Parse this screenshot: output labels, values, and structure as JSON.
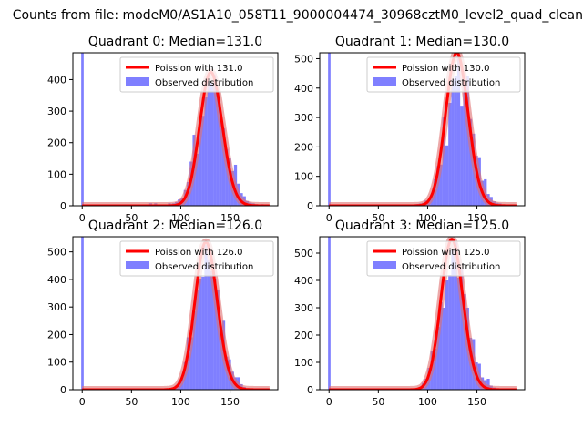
{
  "figure": {
    "suptitle": "Counts from file: modeM0/AS1A10_058T11_9000004474_30968cztM0_level2_quad_clean"
  },
  "colors": {
    "histogram": "#0000ff",
    "poisson_line": "#ff0000",
    "poisson_shadow": "#e07070",
    "axis": "#000000",
    "legend_border": "#cccccc"
  },
  "chart_data": [
    {
      "type": "histogram",
      "title": "Quadrant 0: Median=131.0",
      "median": 131,
      "xlim": [
        -9.45,
        198.45
      ],
      "ylim": [
        0,
        485
      ],
      "xticks": [
        0,
        50,
        100,
        150
      ],
      "yticks": [
        0,
        100,
        200,
        300,
        400
      ],
      "legend": [
        "Poission with 131.0",
        "Observed distribution"
      ],
      "legend_loc": "upper right",
      "spike": {
        "x": 0,
        "value": 485
      },
      "bins": [
        {
          "x": 68,
          "value": 8
        },
        {
          "x": 73,
          "value": 8
        },
        {
          "x": 87,
          "value": 8
        },
        {
          "x": 91,
          "value": 8
        },
        {
          "x": 94,
          "value": 12
        },
        {
          "x": 97,
          "value": 20
        },
        {
          "x": 100,
          "value": 25
        },
        {
          "x": 103,
          "value": 50
        },
        {
          "x": 106,
          "value": 75
        },
        {
          "x": 109,
          "value": 140
        },
        {
          "x": 112,
          "value": 225
        },
        {
          "x": 115,
          "value": 165
        },
        {
          "x": 118,
          "value": 280
        },
        {
          "x": 121,
          "value": 285
        },
        {
          "x": 124,
          "value": 345
        },
        {
          "x": 127,
          "value": 395
        },
        {
          "x": 130,
          "value": 390
        },
        {
          "x": 133,
          "value": 415
        },
        {
          "x": 136,
          "value": 360
        },
        {
          "x": 139,
          "value": 290
        },
        {
          "x": 142,
          "value": 245
        },
        {
          "x": 145,
          "value": 180
        },
        {
          "x": 148,
          "value": 150
        },
        {
          "x": 151,
          "value": 110
        },
        {
          "x": 154,
          "value": 130
        },
        {
          "x": 157,
          "value": 70
        },
        {
          "x": 160,
          "value": 40
        },
        {
          "x": 163,
          "value": 30
        },
        {
          "x": 166,
          "value": 15
        },
        {
          "x": 169,
          "value": 10
        },
        {
          "x": 172,
          "value": 8
        },
        {
          "x": 175,
          "value": 5
        },
        {
          "x": 181,
          "value": 5
        }
      ]
    },
    {
      "type": "histogram",
      "title": "Quadrant 1: Median=130.0",
      "median": 130,
      "xlim": [
        -9.45,
        198.45
      ],
      "ylim": [
        0,
        520
      ],
      "xticks": [
        0,
        50,
        100,
        150
      ],
      "yticks": [
        0,
        100,
        200,
        300,
        400,
        500
      ],
      "legend": [
        "Poission with 130.0",
        "Observed distribution"
      ],
      "legend_loc": "upper right",
      "spike": {
        "x": 0,
        "value": 520
      },
      "bins": [
        {
          "x": 88,
          "value": 6
        },
        {
          "x": 91,
          "value": 8
        },
        {
          "x": 94,
          "value": 10
        },
        {
          "x": 97,
          "value": 18
        },
        {
          "x": 100,
          "value": 20
        },
        {
          "x": 103,
          "value": 40
        },
        {
          "x": 106,
          "value": 90
        },
        {
          "x": 109,
          "value": 135
        },
        {
          "x": 112,
          "value": 140
        },
        {
          "x": 115,
          "value": 300
        },
        {
          "x": 118,
          "value": 205
        },
        {
          "x": 121,
          "value": 350
        },
        {
          "x": 124,
          "value": 430
        },
        {
          "x": 127,
          "value": 440
        },
        {
          "x": 130,
          "value": 510
        },
        {
          "x": 133,
          "value": 340
        },
        {
          "x": 136,
          "value": 420
        },
        {
          "x": 139,
          "value": 440
        },
        {
          "x": 142,
          "value": 295
        },
        {
          "x": 145,
          "value": 245
        },
        {
          "x": 148,
          "value": 170
        },
        {
          "x": 151,
          "value": 165
        },
        {
          "x": 154,
          "value": 85
        },
        {
          "x": 157,
          "value": 90
        },
        {
          "x": 160,
          "value": 40
        },
        {
          "x": 163,
          "value": 30
        },
        {
          "x": 166,
          "value": 15
        },
        {
          "x": 169,
          "value": 10
        },
        {
          "x": 172,
          "value": 8
        },
        {
          "x": 175,
          "value": 5
        }
      ]
    },
    {
      "type": "histogram",
      "title": "Quadrant 2: Median=126.0",
      "median": 126,
      "xlim": [
        -9.45,
        198.45
      ],
      "ylim": [
        0,
        555
      ],
      "xticks": [
        0,
        50,
        100,
        150
      ],
      "yticks": [
        0,
        100,
        200,
        300,
        400,
        500
      ],
      "legend": [
        "Poission with 126.0",
        "Observed distribution"
      ],
      "legend_loc": "upper right",
      "spike": {
        "x": 0,
        "value": 555
      },
      "bins": [
        {
          "x": 91,
          "value": 8
        },
        {
          "x": 94,
          "value": 15
        },
        {
          "x": 97,
          "value": 30
        },
        {
          "x": 100,
          "value": 45
        },
        {
          "x": 103,
          "value": 100
        },
        {
          "x": 106,
          "value": 190
        },
        {
          "x": 109,
          "value": 190
        },
        {
          "x": 112,
          "value": 285
        },
        {
          "x": 115,
          "value": 360
        },
        {
          "x": 118,
          "value": 400
        },
        {
          "x": 121,
          "value": 410
        },
        {
          "x": 124,
          "value": 525
        },
        {
          "x": 127,
          "value": 470
        },
        {
          "x": 130,
          "value": 430
        },
        {
          "x": 133,
          "value": 400
        },
        {
          "x": 136,
          "value": 360
        },
        {
          "x": 139,
          "value": 230
        },
        {
          "x": 142,
          "value": 250
        },
        {
          "x": 145,
          "value": 120
        },
        {
          "x": 148,
          "value": 110
        },
        {
          "x": 151,
          "value": 65
        },
        {
          "x": 154,
          "value": 45
        },
        {
          "x": 157,
          "value": 45
        },
        {
          "x": 160,
          "value": 20
        },
        {
          "x": 163,
          "value": 10
        },
        {
          "x": 166,
          "value": 5
        }
      ]
    },
    {
      "type": "histogram",
      "title": "Quadrant 3: Median=125.0",
      "median": 125,
      "xlim": [
        -9.45,
        198.45
      ],
      "ylim": [
        0,
        560
      ],
      "xticks": [
        0,
        50,
        100,
        150
      ],
      "yticks": [
        0,
        100,
        200,
        300,
        400,
        500
      ],
      "legend": [
        "Poission with 125.0",
        "Observed distribution"
      ],
      "legend_loc": "upper right",
      "spike": {
        "x": 0,
        "value": 560
      },
      "bins": [
        {
          "x": 91,
          "value": 8
        },
        {
          "x": 94,
          "value": 25
        },
        {
          "x": 97,
          "value": 40
        },
        {
          "x": 100,
          "value": 80
        },
        {
          "x": 103,
          "value": 140
        },
        {
          "x": 106,
          "value": 150
        },
        {
          "x": 109,
          "value": 230
        },
        {
          "x": 112,
          "value": 320
        },
        {
          "x": 115,
          "value": 300
        },
        {
          "x": 118,
          "value": 400
        },
        {
          "x": 121,
          "value": 420
        },
        {
          "x": 124,
          "value": 510
        },
        {
          "x": 127,
          "value": 540
        },
        {
          "x": 130,
          "value": 410
        },
        {
          "x": 133,
          "value": 440
        },
        {
          "x": 136,
          "value": 350
        },
        {
          "x": 139,
          "value": 300
        },
        {
          "x": 142,
          "value": 190
        },
        {
          "x": 145,
          "value": 185
        },
        {
          "x": 148,
          "value": 100
        },
        {
          "x": 151,
          "value": 95
        },
        {
          "x": 154,
          "value": 45
        },
        {
          "x": 157,
          "value": 35
        },
        {
          "x": 160,
          "value": 40
        },
        {
          "x": 163,
          "value": 15
        },
        {
          "x": 166,
          "value": 8
        },
        {
          "x": 169,
          "value": 5
        }
      ]
    }
  ]
}
